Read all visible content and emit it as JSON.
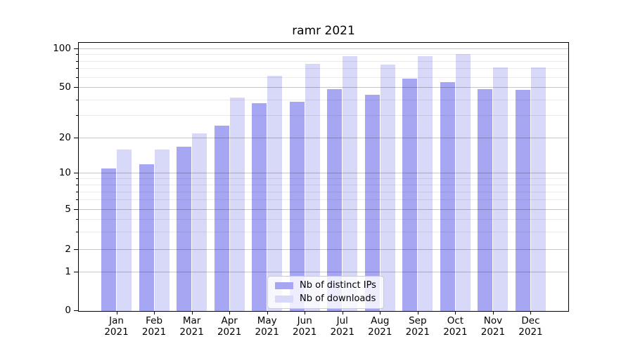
{
  "chart_data": {
    "type": "bar",
    "title": "ramr 2021",
    "categories": [
      "Jan 2021",
      "Feb 2021",
      "Mar 2021",
      "Apr 2021",
      "May 2021",
      "Jun 2021",
      "Jul 2021",
      "Aug 2021",
      "Sep 2021",
      "Oct 2021",
      "Nov 2021",
      "Dec 2021"
    ],
    "series": [
      {
        "name": "Nb of distinct IPs",
        "color": "#a6a6f3",
        "values": [
          11,
          12,
          17,
          25,
          38,
          39,
          49,
          44,
          59,
          55,
          49,
          48
        ]
      },
      {
        "name": "Nb of downloads",
        "color": "#d8d8f8",
        "values": [
          16,
          16,
          22,
          42,
          62,
          77,
          88,
          76,
          88,
          92,
          72,
          72
        ]
      }
    ],
    "yscale": "symlog",
    "yticks": [
      0,
      1,
      2,
      5,
      10,
      20,
      50,
      100
    ],
    "yticks_minor": [
      3,
      4,
      6,
      7,
      8,
      9,
      30,
      40,
      60,
      70,
      80,
      90
    ],
    "ylim": [
      0,
      112
    ],
    "grid": true,
    "legend_position": "lower center",
    "colors": {
      "background": "#ffffff",
      "spine": "#000000",
      "grid_major": "#c7c7c7",
      "grid_minor": "#ebebeb"
    }
  }
}
